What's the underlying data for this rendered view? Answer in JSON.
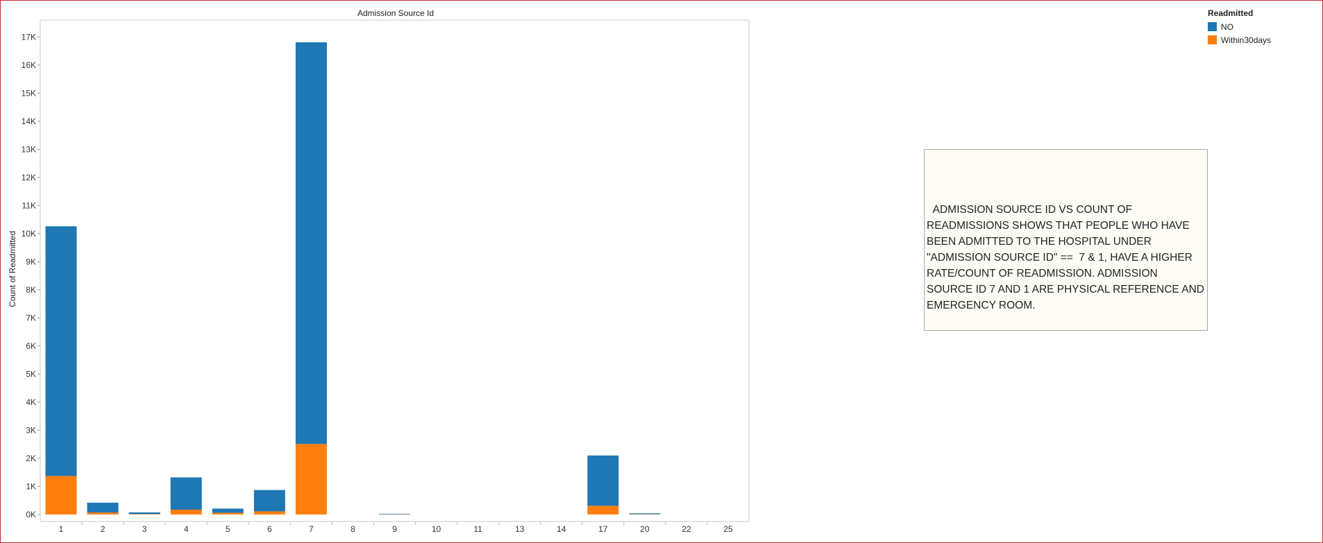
{
  "chart_data": {
    "type": "bar",
    "stacked": true,
    "title": "Admission Source Id",
    "xlabel": "",
    "ylabel": "Count of Readmitted",
    "categories": [
      "1",
      "2",
      "3",
      "4",
      "5",
      "6",
      "7",
      "8",
      "9",
      "10",
      "11",
      "13",
      "14",
      "17",
      "20",
      "22",
      "25"
    ],
    "series": [
      {
        "name": "NO",
        "color": "#1f77b4",
        "values": [
          8890,
          350,
          60,
          1150,
          150,
          760,
          14300,
          0,
          20,
          0,
          0,
          0,
          0,
          1790,
          30,
          0,
          0
        ]
      },
      {
        "name": "Within30days",
        "color": "#ff7f0e",
        "values": [
          1370,
          70,
          15,
          170,
          60,
          110,
          2510,
          0,
          5,
          0,
          0,
          0,
          0,
          310,
          10,
          0,
          0
        ]
      }
    ],
    "yticks": [
      "0K",
      "1K",
      "2K",
      "3K",
      "4K",
      "5K",
      "6K",
      "7K",
      "8K",
      "9K",
      "10K",
      "11K",
      "12K",
      "13K",
      "14K",
      "15K",
      "16K",
      "17K"
    ],
    "ylim": [
      -250,
      17600
    ],
    "grid": false,
    "legend_position": "top-right"
  },
  "legend": {
    "title": "Readmitted",
    "items": [
      {
        "label": "NO",
        "color": "#1f77b4"
      },
      {
        "label": "Within30days",
        "color": "#ff7f0e"
      }
    ]
  },
  "annotation": {
    "text": "ADMISSION SOURCE ID VS COUNT OF READMISSIONS SHOWS THAT PEOPLE WHO HAVE BEEN ADMITTED TO THE HOSPITAL UNDER \"ADMISSION SOURCE ID\" ==  7 & 1, HAVE A HIGHER RATE/COUNT OF READMISSION. ADMISSION SOURCE ID 7 AND 1 ARE PHYSICAL REFERENCE AND EMERGENCY ROOM."
  }
}
